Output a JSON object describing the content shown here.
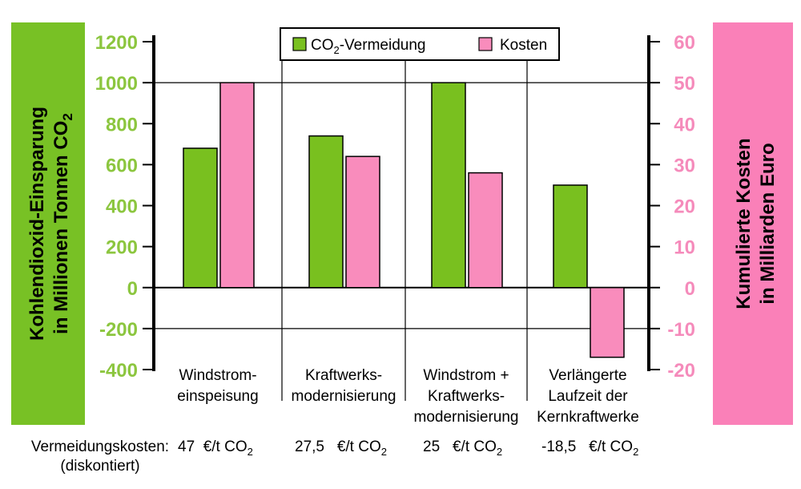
{
  "colors": {
    "green": "#79c01f",
    "pink": "#f98cbc",
    "band_green": "#78c125",
    "band_pink": "#fa80b8",
    "tick_green": "#8cc63f",
    "tick_pink": "#f58bbb"
  },
  "chart_data": {
    "type": "bar",
    "left_axis": {
      "label_line1": "Kohlendioxid-Einsparung",
      "label_line2_main": "in Millionen Tonnen CO",
      "label_line2_sub": "2",
      "range": [
        -400,
        1200
      ],
      "ticks": [
        "1200",
        "1000",
        "800",
        "600",
        "400",
        "200",
        "0",
        "-200",
        "-400"
      ]
    },
    "right_axis": {
      "label_line1": "Kumulierte Kosten",
      "label_line2": "in Milliarden Euro",
      "range": [
        -20,
        60
      ],
      "ticks": [
        "60",
        "50",
        "40",
        "30",
        "20",
        "10",
        "0",
        "-10",
        "-20"
      ]
    },
    "categories": [
      [
        "Windstrom-",
        "einspeisung"
      ],
      [
        "Kraftwerks-",
        "modernisierung"
      ],
      [
        "Windstrom +",
        "Kraftwerks-",
        "modernisierung"
      ],
      [
        "Verlängerte",
        "Laufzeit der",
        "Kernkraftwerke"
      ]
    ],
    "series": [
      {
        "name": "CO2-Vermeidung",
        "legend_main": "CO",
        "legend_sub": "2",
        "legend_rest": "-Vermeidung",
        "axis": "left",
        "values": [
          680,
          740,
          1000,
          500
        ]
      },
      {
        "name": "Kosten",
        "legend_main": "Kosten",
        "axis": "right",
        "values": [
          50,
          32,
          28,
          -17
        ]
      }
    ],
    "legend_position": "top-center",
    "grid": "vertical separators and horizontal lines at 0, 1000 and -200"
  },
  "costs_row": {
    "label_line1": "Vermeidungskosten:",
    "label_line2": "(diskontiert)",
    "items": [
      {
        "value": "47",
        "unit": "€/t CO",
        "sub": "2"
      },
      {
        "value": "27,5",
        "unit": "€/t CO",
        "sub": "2"
      },
      {
        "value": "25",
        "unit": "€/t CO",
        "sub": "2"
      },
      {
        "value": "-18,5",
        "unit": "€/t CO",
        "sub": "2"
      }
    ]
  }
}
